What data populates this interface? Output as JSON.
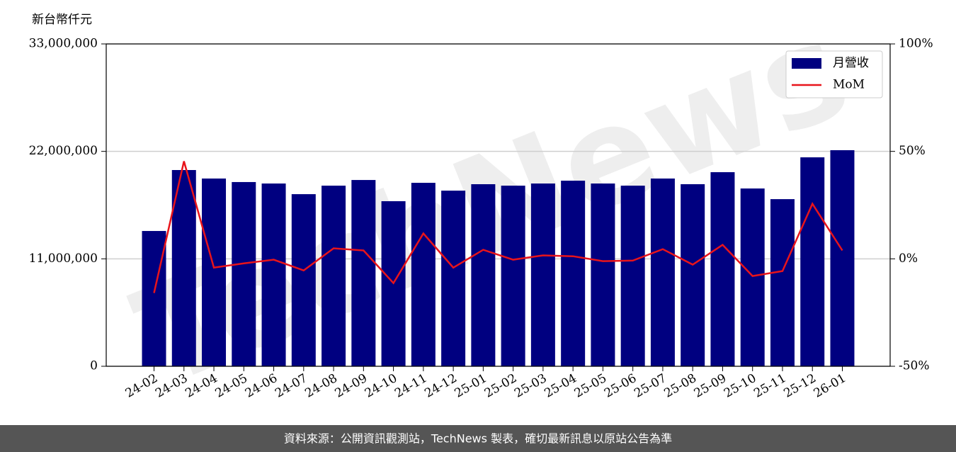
{
  "chart_data": {
    "type": "bar_line",
    "y_label": "新台幣仟元",
    "watermark": "TechNews",
    "footer": "資料來源：公開資訊觀測站，TechNews 製表，確切最新訊息以原站公告為準",
    "categories": [
      "24-02",
      "24-03",
      "24-04",
      "24-05",
      "24-06",
      "24-07",
      "24-08",
      "24-09",
      "24-10",
      "24-11",
      "24-12",
      "25-01",
      "25-02",
      "25-03",
      "25-04",
      "25-05",
      "25-06",
      "25-07",
      "25-08",
      "25-09",
      "25-10",
      "25-11",
      "25-12",
      "26-01"
    ],
    "series": [
      {
        "name": "月營收",
        "type": "bar",
        "color": "#000080",
        "values": [
          13850000,
          20090000,
          19220000,
          18860000,
          18710000,
          17620000,
          18490000,
          19070000,
          16900000,
          18780000,
          17980000,
          18640000,
          18490000,
          18710000,
          19000000,
          18710000,
          18490000,
          19220000,
          18640000,
          19870000,
          18200000,
          17110000,
          21390000,
          22120000
        ]
      },
      {
        "name": "MoM",
        "type": "line",
        "axis": "y2",
        "color": "#e8141b",
        "values": [
          -15.9,
          45.4,
          -4.1,
          -2.1,
          -0.4,
          -5.4,
          4.9,
          3.9,
          -11.3,
          11.8,
          -4.1,
          4.2,
          -0.4,
          1.6,
          1.2,
          -1.1,
          -0.8,
          4.5,
          -2.7,
          6.5,
          -8.0,
          -5.7,
          25.6,
          3.9
        ]
      }
    ],
    "ylim": [
      0,
      33000000
    ],
    "yticks": [
      0,
      {
        "value": 11000000,
        "label": "11,000,000"
      },
      {
        "value": 22000000,
        "label": "22,000,000"
      },
      {
        "value": 33000000,
        "label": "33,000,000"
      }
    ],
    "y2lim": [
      -50,
      100
    ],
    "y2ticks": [
      {
        "value": -50,
        "label": "-50%"
      },
      {
        "value": 0,
        "label": "0%"
      },
      {
        "value": 50,
        "label": "50%"
      },
      {
        "value": 100,
        "label": "100%"
      }
    ],
    "grid": true,
    "legend": "upper right"
  }
}
